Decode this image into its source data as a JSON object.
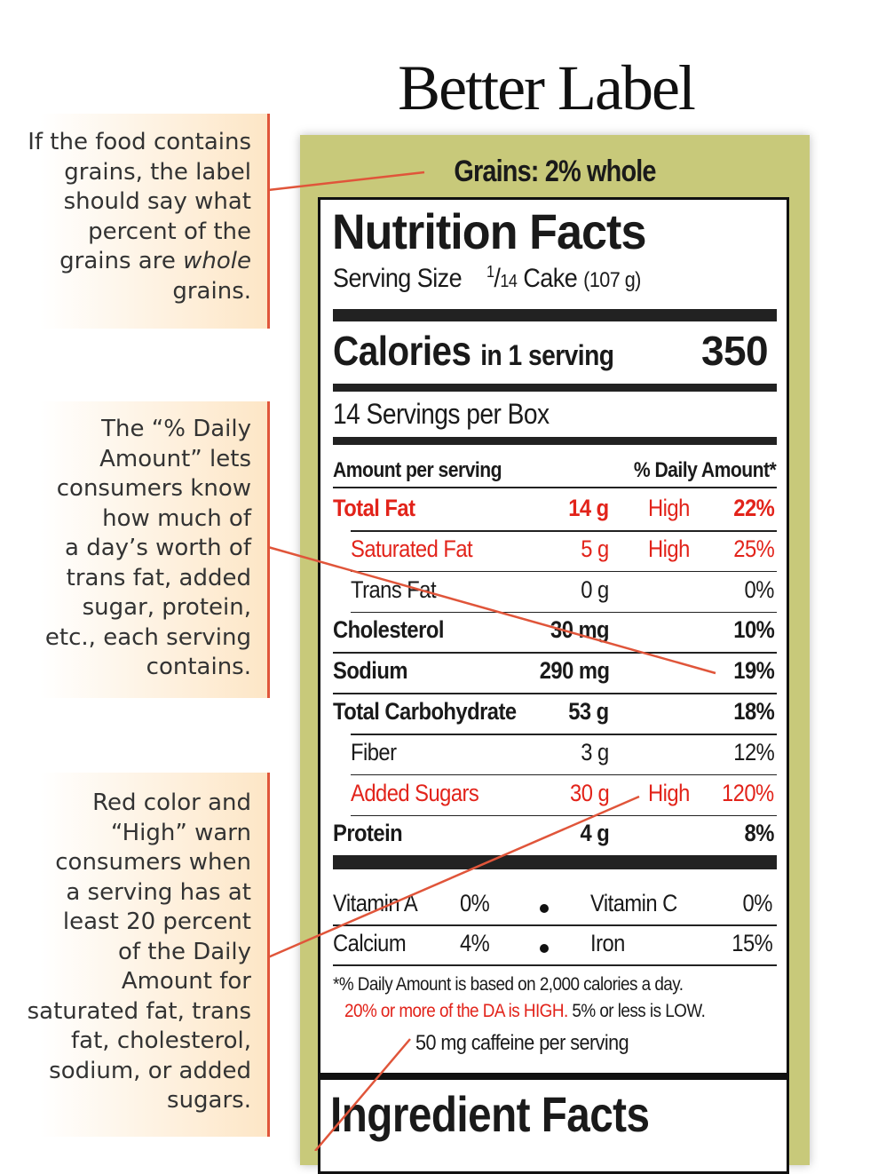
{
  "title": "Better Label",
  "notes": [
    {
      "lines": [
        "If the food contains",
        "grains, the label",
        "should say what",
        "percent of the",
        "grains are "
      ],
      "italic": "whole",
      "last": "grains."
    },
    {
      "text": [
        "The “% Daily",
        "Amount” lets",
        "consumers know",
        "how much of",
        "a day’s worth of",
        "trans fat, added",
        "sugar, protein,",
        "etc., each serving",
        "contains."
      ]
    },
    {
      "text": [
        "Red color and",
        "“High” warn",
        "consumers when",
        "a serving has at",
        "least 20 percent",
        "of the Daily",
        "Amount for",
        "saturated fat, trans",
        "fat, cholesterol,",
        "sodium, or added",
        "sugars."
      ]
    }
  ],
  "label": {
    "grains": "Grains: 2% whole",
    "heading": "Nutrition Facts",
    "serving_size_label": "Serving Size",
    "serving_fraction_num": "1",
    "serving_fraction_den": "14",
    "serving_size_value": "Cake",
    "serving_size_grams": "(107 g)",
    "calories_label": "Calories",
    "calories_sub": "in 1 serving",
    "calories_value": "350",
    "servings_per": "14 Servings per Box",
    "col_amount": "Amount per serving",
    "col_daily": "% Daily Amount*",
    "rows": [
      {
        "name": "Total Fat",
        "amount": "14 g",
        "flag": "High",
        "pct": "22%",
        "red": true,
        "bold": true,
        "indent": false
      },
      {
        "name": "Saturated Fat",
        "amount": "5 g",
        "flag": "High",
        "pct": "25%",
        "red": true,
        "bold": false,
        "indent": true
      },
      {
        "name": "Trans Fat",
        "amount": "0 g",
        "flag": "",
        "pct": "0%",
        "red": false,
        "bold": false,
        "indent": true
      },
      {
        "name": "Cholesterol",
        "amount": "30 mg",
        "flag": "",
        "pct": "10%",
        "red": false,
        "bold": true,
        "indent": false
      },
      {
        "name": "Sodium",
        "amount": "290 mg",
        "flag": "",
        "pct": "19%",
        "red": false,
        "bold": true,
        "indent": false
      },
      {
        "name": "Total Carbohydrate",
        "amount": "53 g",
        "flag": "",
        "pct": "18%",
        "red": false,
        "bold": true,
        "indent": false
      },
      {
        "name": "Fiber",
        "amount": "3 g",
        "flag": "",
        "pct": "12%",
        "red": false,
        "bold": false,
        "indent": true
      },
      {
        "name": "Added Sugars",
        "amount": "30 g",
        "flag": "High",
        "pct": "120%",
        "red": true,
        "bold": false,
        "indent": true
      },
      {
        "name": "Protein",
        "amount": "4 g",
        "flag": "",
        "pct": "8%",
        "red": false,
        "bold": true,
        "indent": false
      }
    ],
    "vitamins": [
      {
        "a_name": "Vitamin A",
        "a_pct": "0%",
        "b_name": "Vitamin C",
        "b_pct": "0%"
      },
      {
        "a_name": "Calcium",
        "a_pct": "4%",
        "b_name": "Iron",
        "b_pct": "15%"
      }
    ],
    "footnote1": "*% Daily Amount is based on 2,000 calories a day.",
    "footnote2_red": "20% or more of the DA is HIGH.",
    "footnote2_rest": " 5% or less is LOW.",
    "caffeine": "50 mg caffeine per serving",
    "ingredient_heading": "Ingredient Facts"
  },
  "colors": {
    "accent_red": "#e2231a",
    "panel_green": "#c8c97a",
    "note_bg": "#fde6c6",
    "pointer_line": "#e0553a"
  }
}
